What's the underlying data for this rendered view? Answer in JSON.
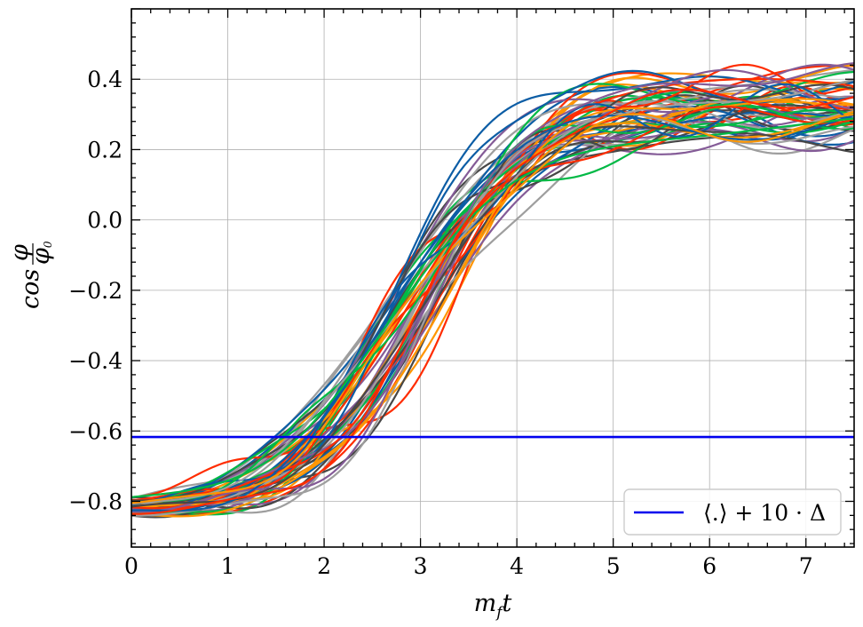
{
  "chart_data": {
    "type": "line",
    "title": "",
    "xlabel_base": "m",
    "xlabel_sub": "f",
    "xlabel_tail": "t",
    "ylabel_base": "cos",
    "ylabel_num": "φ",
    "ylabel_den_base": "φ",
    "ylabel_den_sub": "0",
    "xlim": [
      0,
      7.5
    ],
    "ylim": [
      -0.93,
      0.6
    ],
    "xticks": [
      0,
      1,
      2,
      3,
      4,
      5,
      6,
      7
    ],
    "xtick_labels": [
      "0",
      "1",
      "2",
      "3",
      "4",
      "5",
      "6",
      "7"
    ],
    "yticks": [
      -0.8,
      -0.6,
      -0.4,
      -0.2,
      0.0,
      0.2,
      0.4
    ],
    "ytick_labels": [
      "−0.8",
      "−0.6",
      "−0.4",
      "−0.2",
      "0.0",
      "0.2",
      "0.4"
    ],
    "grid": true,
    "legend_position": "lower-right",
    "legend_label": "⟨.⟩ + 10 · Δ",
    "reference_line": {
      "name": "⟨.⟩ + 10 · Δ",
      "y": -0.617,
      "color": "#0000ee"
    },
    "ensemble": {
      "description_of_trajectories": "many stochastic realizations rising from about -0.83 to about 0.33",
      "count": 60,
      "start_value": -0.83,
      "plateau_value": 0.33,
      "midpoint_t": 2.85,
      "colors": [
        "#0C5DA5",
        "#00B945",
        "#FF9500",
        "#FF2C00",
        "#845B97",
        "#474747",
        "#9e9e9e"
      ]
    }
  }
}
